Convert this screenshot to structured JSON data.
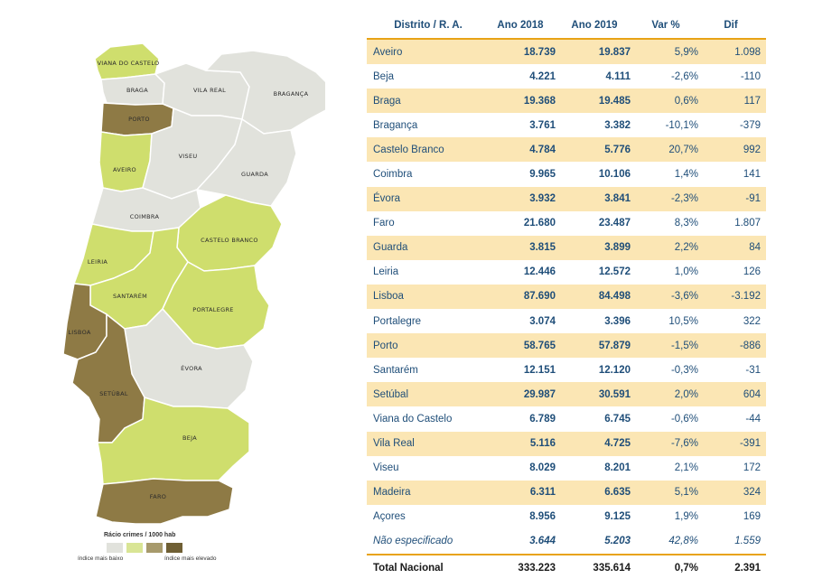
{
  "colors": {
    "low": "#e1e2dc",
    "mid_low": "#d9e595",
    "mid_high": "#cfde6d",
    "high": "#8e7a45",
    "table_text": "#1f4e79",
    "row_shade": "#fbe6b4",
    "rule": "#e8a317"
  },
  "map": {
    "regions": [
      {
        "name": "VIANA DO CASTELO",
        "level": "mid_high"
      },
      {
        "name": "BRAGA",
        "level": "low"
      },
      {
        "name": "VILA REAL",
        "level": "low"
      },
      {
        "name": "BRAGANÇA",
        "level": "low"
      },
      {
        "name": "PORTO",
        "level": "high"
      },
      {
        "name": "AVEIRO",
        "level": "mid_high"
      },
      {
        "name": "VISEU",
        "level": "low"
      },
      {
        "name": "GUARDA",
        "level": "low"
      },
      {
        "name": "COIMBRA",
        "level": "low"
      },
      {
        "name": "CASTELO BRANCO",
        "level": "mid_high"
      },
      {
        "name": "LEIRIA",
        "level": "mid_high"
      },
      {
        "name": "SANTARÉM",
        "level": "mid_high"
      },
      {
        "name": "PORTALEGRE",
        "level": "mid_high"
      },
      {
        "name": "LISBOA",
        "level": "high"
      },
      {
        "name": "ÉVORA",
        "level": "low"
      },
      {
        "name": "SETÚBAL",
        "level": "high"
      },
      {
        "name": "BEJA",
        "level": "mid_high"
      },
      {
        "name": "FARO",
        "level": "high"
      }
    ]
  },
  "legend": {
    "title": "Rácio crimes / 1000 hab",
    "low_label": "índice mais baixo",
    "high_label": "índice mais elevado",
    "swatches": [
      "#e1e2dc",
      "#d9e595",
      "#a79a6c",
      "#6f5f34"
    ]
  },
  "table": {
    "headers": [
      "Distrito / R. A.",
      "Ano 2018",
      "Ano 2019",
      "Var %",
      "Dif"
    ],
    "rows": [
      {
        "name": "Aveiro",
        "y2018": "18.739",
        "y2019": "19.837",
        "var": "5,9%",
        "dif": "1.098"
      },
      {
        "name": "Beja",
        "y2018": "4.221",
        "y2019": "4.111",
        "var": "-2,6%",
        "dif": "-110"
      },
      {
        "name": "Braga",
        "y2018": "19.368",
        "y2019": "19.485",
        "var": "0,6%",
        "dif": "117"
      },
      {
        "name": "Bragança",
        "y2018": "3.761",
        "y2019": "3.382",
        "var": "-10,1%",
        "dif": "-379"
      },
      {
        "name": "Castelo Branco",
        "y2018": "4.784",
        "y2019": "5.776",
        "var": "20,7%",
        "dif": "992"
      },
      {
        "name": "Coimbra",
        "y2018": "9.965",
        "y2019": "10.106",
        "var": "1,4%",
        "dif": "141"
      },
      {
        "name": "Évora",
        "y2018": "3.932",
        "y2019": "3.841",
        "var": "-2,3%",
        "dif": "-91"
      },
      {
        "name": "Faro",
        "y2018": "21.680",
        "y2019": "23.487",
        "var": "8,3%",
        "dif": "1.807"
      },
      {
        "name": "Guarda",
        "y2018": "3.815",
        "y2019": "3.899",
        "var": "2,2%",
        "dif": "84"
      },
      {
        "name": "Leiria",
        "y2018": "12.446",
        "y2019": "12.572",
        "var": "1,0%",
        "dif": "126"
      },
      {
        "name": "Lisboa",
        "y2018": "87.690",
        "y2019": "84.498",
        "var": "-3,6%",
        "dif": "-3.192"
      },
      {
        "name": "Portalegre",
        "y2018": "3.074",
        "y2019": "3.396",
        "var": "10,5%",
        "dif": "322"
      },
      {
        "name": "Porto",
        "y2018": "58.765",
        "y2019": "57.879",
        "var": "-1,5%",
        "dif": "-886"
      },
      {
        "name": "Santarém",
        "y2018": "12.151",
        "y2019": "12.120",
        "var": "-0,3%",
        "dif": "-31"
      },
      {
        "name": "Setúbal",
        "y2018": "29.987",
        "y2019": "30.591",
        "var": "2,0%",
        "dif": "604"
      },
      {
        "name": "Viana do Castelo",
        "y2018": "6.789",
        "y2019": "6.745",
        "var": "-0,6%",
        "dif": "-44"
      },
      {
        "name": "Vila Real",
        "y2018": "5.116",
        "y2019": "4.725",
        "var": "-7,6%",
        "dif": "-391"
      },
      {
        "name": "Viseu",
        "y2018": "8.029",
        "y2019": "8.201",
        "var": "2,1%",
        "dif": "172"
      },
      {
        "name": "Madeira",
        "y2018": "6.311",
        "y2019": "6.635",
        "var": "5,1%",
        "dif": "324"
      },
      {
        "name": "Açores",
        "y2018": "8.956",
        "y2019": "9.125",
        "var": "1,9%",
        "dif": "169"
      }
    ],
    "unspecified": {
      "name": "Não especificado",
      "y2018": "3.644",
      "y2019": "5.203",
      "var": "42,8%",
      "dif": "1.559"
    },
    "total": {
      "name": "Total Nacional",
      "y2018": "333.223",
      "y2019": "335.614",
      "var": "0,7%",
      "dif": "2.391"
    }
  }
}
